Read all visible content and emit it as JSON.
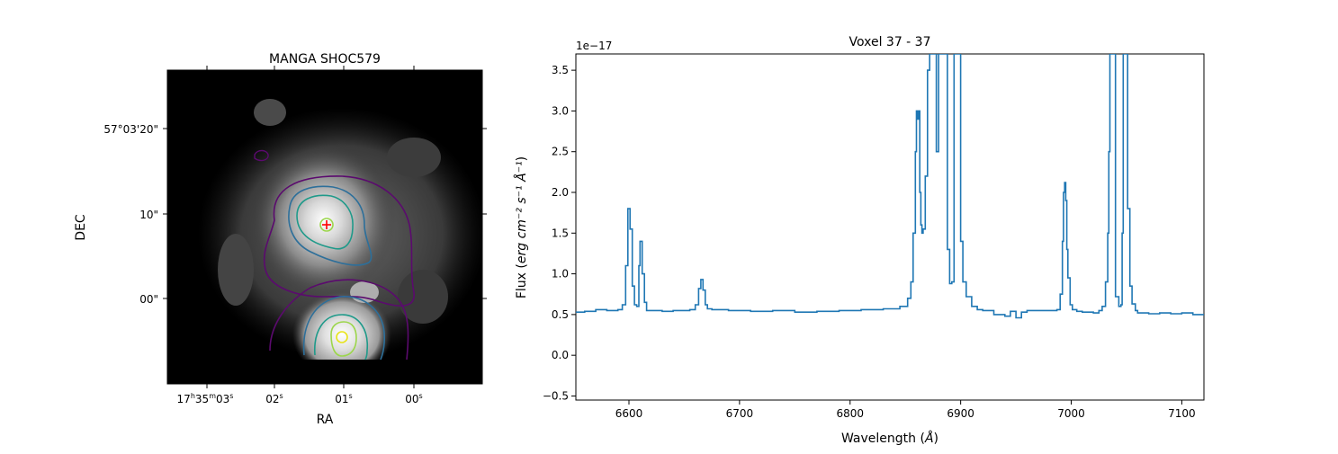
{
  "chart_data": [
    {
      "type": "image",
      "title": "MANGA SHOC579",
      "xlabel": "RA",
      "ylabel": "DEC",
      "x_ticks": [
        {
          "h": "17",
          "m": "35",
          "s": "03",
          "label": "17h35m03s"
        },
        {
          "s": "02",
          "label": "02s"
        },
        {
          "s": "01",
          "label": "01s"
        },
        {
          "s": "00",
          "label": "00s"
        }
      ],
      "y_ticks": [
        "57°03'20\"",
        "10\"",
        "00\""
      ],
      "marker": "red cross at spaxel center",
      "contour_colors": [
        "#5b0a6e",
        "#2d6f9a",
        "#1f9a8a",
        "#9cd64b",
        "#e8e419"
      ],
      "colormap": "gray",
      "background": "#000000"
    },
    {
      "type": "line",
      "style": "steps",
      "title": "Voxel 37 - 37",
      "xlabel": "Wavelength",
      "xlabel_unit": "Å",
      "ylabel": "Flux",
      "ylabel_unit": "erg cm⁻² s⁻¹ Å⁻¹",
      "offset_text": "1e−17",
      "xlim": [
        6552,
        7120
      ],
      "ylim": [
        -0.55,
        3.7
      ],
      "x_ticks": [
        6600,
        6700,
        6800,
        6900,
        7000,
        7100
      ],
      "y_ticks": [
        "−0.5",
        "0.0",
        "0.5",
        "1.0",
        "1.5",
        "2.0",
        "2.5",
        "3.0",
        "3.5"
      ],
      "color": "#1f77b4",
      "x": [
        6552,
        6560,
        6570,
        6580,
        6590,
        6594,
        6597,
        6599,
        6601,
        6603,
        6605,
        6607,
        6609,
        6610,
        6612,
        6614,
        6616,
        6620,
        6630,
        6640,
        6650,
        6655,
        6660,
        6663,
        6665,
        6667,
        6669,
        6671,
        6675,
        6690,
        6710,
        6730,
        6750,
        6770,
        6790,
        6810,
        6830,
        6845,
        6852,
        6855,
        6857,
        6859,
        6860,
        6861,
        6862,
        6863,
        6864,
        6865,
        6866,
        6868,
        6870,
        6872,
        6874,
        6876,
        6878,
        6880,
        6882,
        6884,
        6886,
        6888,
        6890,
        6892,
        6894,
        6896,
        6898,
        6900,
        6902,
        6905,
        6910,
        6915,
        6920,
        6930,
        6940,
        6945,
        6950,
        6955,
        6960,
        6970,
        6980,
        6987,
        6990,
        6992,
        6993,
        6994,
        6995,
        6996,
        6997,
        6999,
        7001,
        7005,
        7010,
        7020,
        7025,
        7028,
        7031,
        7033,
        7034,
        7035,
        7036,
        7037,
        7040,
        7043,
        7045,
        7046,
        7047,
        7048,
        7049,
        7050,
        7051,
        7053,
        7055,
        7058,
        7060,
        7070,
        7080,
        7090,
        7100,
        7110,
        7120
      ],
      "y": [
        0.53,
        0.54,
        0.56,
        0.55,
        0.56,
        0.62,
        1.1,
        1.8,
        1.55,
        0.85,
        0.62,
        0.6,
        1.1,
        1.4,
        1.0,
        0.65,
        0.55,
        0.55,
        0.54,
        0.55,
        0.55,
        0.56,
        0.62,
        0.82,
        0.93,
        0.8,
        0.62,
        0.57,
        0.56,
        0.55,
        0.54,
        0.55,
        0.53,
        0.54,
        0.55,
        0.56,
        0.57,
        0.6,
        0.7,
        0.9,
        1.5,
        2.5,
        3.0,
        2.9,
        3.0,
        2.0,
        1.6,
        1.5,
        1.55,
        2.2,
        3.5,
        3.7,
        3.7,
        3.7,
        2.5,
        3.7,
        3.7,
        3.7,
        3.7,
        1.3,
        0.88,
        0.9,
        3.7,
        3.7,
        3.7,
        1.4,
        0.9,
        0.72,
        0.6,
        0.56,
        0.55,
        0.5,
        0.48,
        0.54,
        0.46,
        0.53,
        0.55,
        0.55,
        0.55,
        0.56,
        0.75,
        1.4,
        2.0,
        2.12,
        1.9,
        1.3,
        0.95,
        0.62,
        0.56,
        0.54,
        0.53,
        0.52,
        0.55,
        0.6,
        0.9,
        1.5,
        2.5,
        3.7,
        3.7,
        3.7,
        0.72,
        0.6,
        0.62,
        1.5,
        3.7,
        3.7,
        3.7,
        3.7,
        1.8,
        0.85,
        0.63,
        0.55,
        0.52,
        0.51,
        0.52,
        0.51,
        0.52,
        0.5,
        0.5
      ]
    }
  ]
}
